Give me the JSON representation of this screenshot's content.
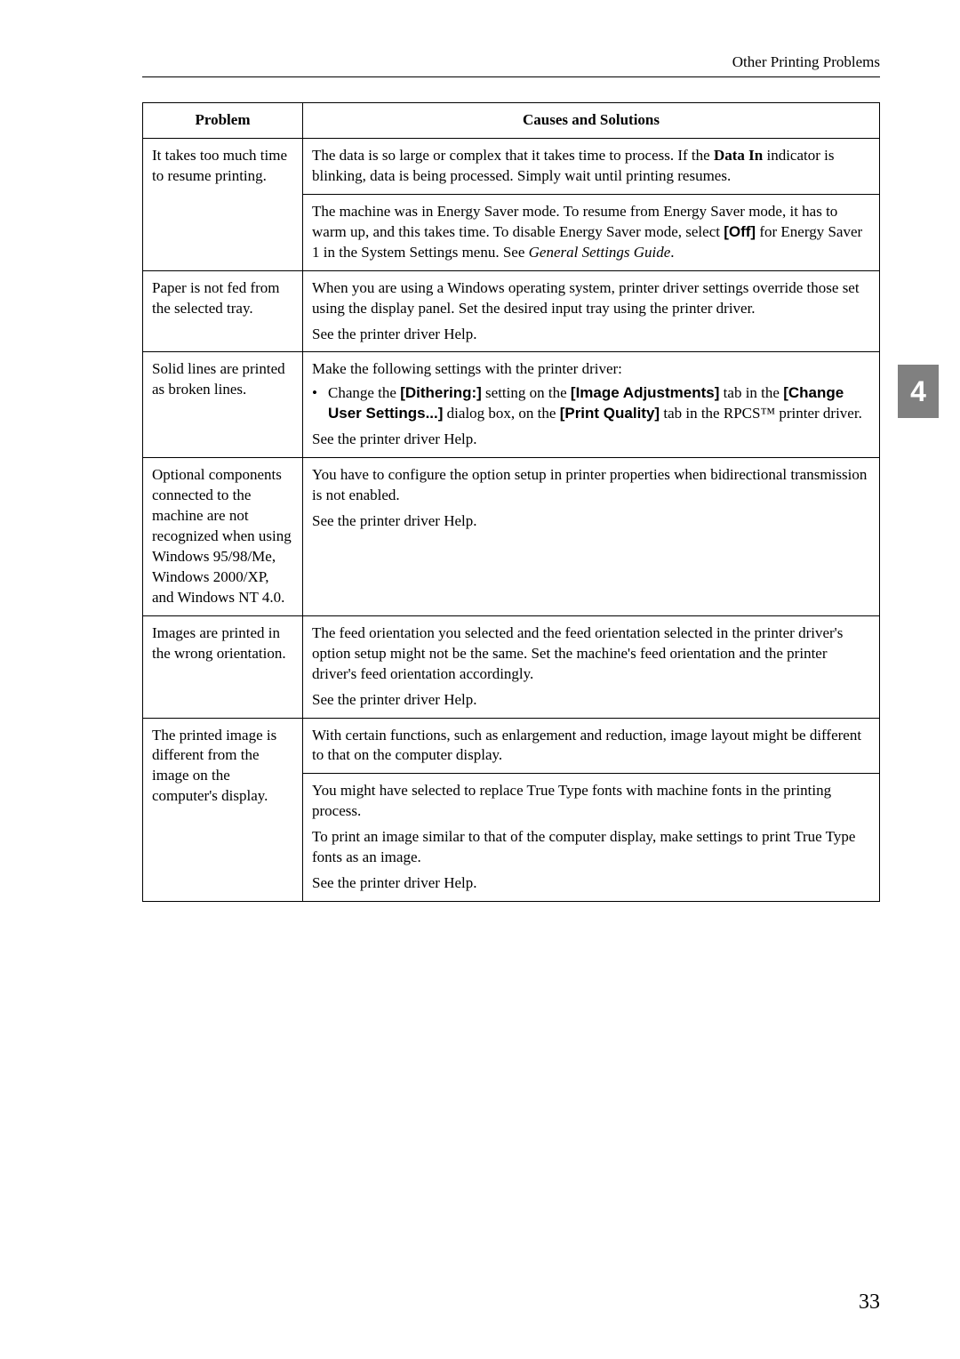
{
  "runningHead": "Other Printing Problems",
  "sideTab": "4",
  "pageNumber": "33",
  "table": {
    "headers": {
      "problem": "Problem",
      "causes": "Causes and Solutions"
    },
    "rows": [
      {
        "problem": "It takes too much time to resume printing.",
        "c1a": "The data is so large or complex that it takes time to process. If the ",
        "c1b": "Data In",
        "c1c": " indicator is blinking, data is being processed. Simply wait until printing resumes."
      },
      {
        "problem": "",
        "c2a": "The machine was in Energy Saver mode. To resume from Energy Saver mode, it has to warm up, and this takes time. To disable Energy Saver mode, select ",
        "c2b": "[Off]",
        "c2c": " for Energy Saver 1 in the System Settings menu. See ",
        "c2d": "General Settings Guide",
        "c2e": "."
      },
      {
        "problem": "Paper is not fed from the selected tray.",
        "c3a": "When you are using a Windows operating system, printer driver settings override those set using the display panel. Set the desired input tray using the printer driver.",
        "c3b": "See the printer driver Help."
      },
      {
        "problem": "Solid lines are printed as broken lines.",
        "c4a": "Make the following settings with the printer driver:",
        "c4b1": "Change the ",
        "c4b2": "[Dithering:]",
        "c4b3": " setting on the ",
        "c4b4": "[Image Adjustments]",
        "c4b5": " tab in the ",
        "c4b6": "[Change User Settings...]",
        "c4b7": " dialog box, on the ",
        "c4b8": "[Print Quality]",
        "c4b9": " tab in the RPCS™ printer driver.",
        "c4c": "See the printer driver Help."
      },
      {
        "problem": "Optional components connected to the machine are not recognized when using Windows 95/98/Me, Windows 2000/XP, and Windows NT 4.0.",
        "c5a": "You have to configure the option setup in printer properties when bidirectional transmission is not enabled.",
        "c5b": "See the printer driver Help."
      },
      {
        "problem": "Images are printed in the wrong orientation.",
        "c6a": "The feed orientation you selected and the feed orientation selected in the printer driver's option setup might not be the same. Set the machine's feed orientation and the printer driver's feed orientation accordingly.",
        "c6b": "See the printer driver Help."
      },
      {
        "problem": "The printed image is different from the image on the computer's display.",
        "c7a": "With certain functions, such as enlargement and reduction, image layout might be different to that on the computer display."
      },
      {
        "problem": "",
        "c8a": "You might have selected to replace True Type fonts with machine fonts in the printing process.",
        "c8b": "To print an image similar to that of the computer display, make settings to print True Type fonts as an image.",
        "c8c": "See the printer driver Help."
      }
    ]
  }
}
